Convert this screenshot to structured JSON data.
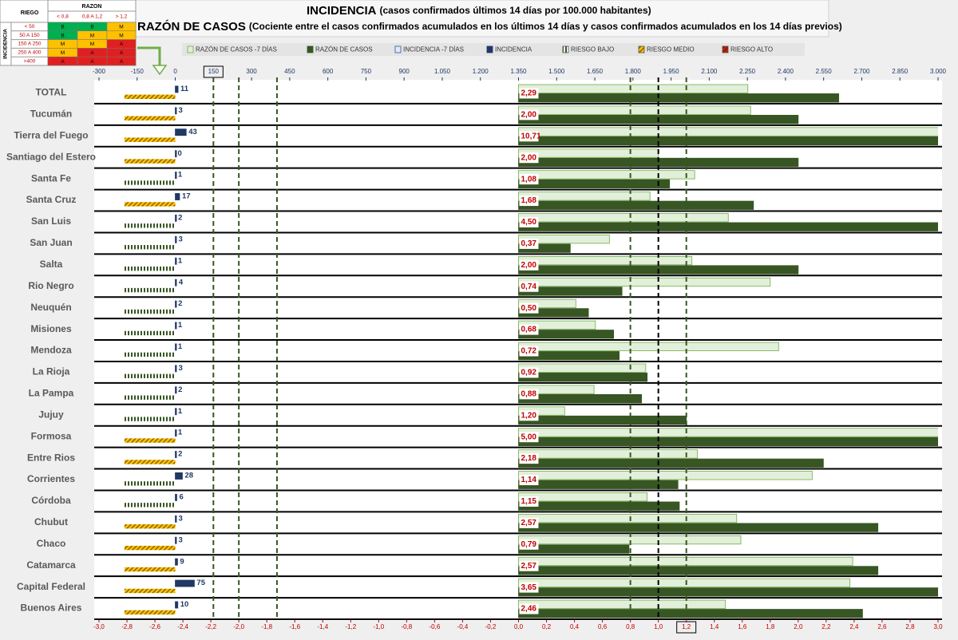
{
  "chart_data": {
    "type": "bar",
    "title": "INCIDENCIA",
    "title_note": "(casos confirmados últimos 14 días por 100.000 habitantes)",
    "subtitle": "RAZÓN DE CASOS",
    "subtitle_note": "(Cociente entre el casos confirmados acumulados en los últimos 14 días y casos confirmados acumulados en los 14 días previos)",
    "categories": [
      "TOTAL",
      "Tucumán",
      "Tierra del Fuego",
      "Santiago del Estero",
      "Santa Fe",
      "Santa Cruz",
      "San Luis",
      "San Juan",
      "Salta",
      "Rio Negro",
      "Neuquén",
      "Misiones",
      "Mendoza",
      "La Rioja",
      "La Pampa",
      "Jujuy",
      "Formosa",
      "Entre Rios",
      "Corrientes",
      "Córdoba",
      "Chubut",
      "Chaco",
      "Catamarca",
      "Capital Federal",
      "Buenos Aires"
    ],
    "series": [
      {
        "name": "RAZÓN DE CASOS -7 DÍAS",
        "axis": "x2",
        "color": "#e2efda",
        "edge_color": "#70ad47",
        "values": [
          1.64,
          1.66,
          3.1,
          1.0,
          1.26,
          0.94,
          1.5,
          0.65,
          1.24,
          1.8,
          0.41,
          0.55,
          1.86,
          0.91,
          0.54,
          0.33,
          3.1,
          1.28,
          2.1,
          0.92,
          1.56,
          1.59,
          2.39,
          2.37,
          1.48
        ]
      },
      {
        "name": "RAZÓN DE CASOS",
        "axis": "x2",
        "color": "#375623",
        "edge_color": "#375623",
        "values": [
          2.29,
          2,
          10.71,
          2,
          1.08,
          1.68,
          4.5,
          0.37,
          2,
          0.74,
          0.5,
          0.68,
          0.72,
          0.92,
          0.88,
          1.2,
          5,
          2.18,
          1.14,
          1.15,
          2.57,
          0.79,
          2.57,
          3.65,
          2.46
        ],
        "value_labels": [
          "2,29",
          "2,00",
          "10,71",
          "2,00",
          "1,08",
          "1,68",
          "4,50",
          "0,37",
          "2,00",
          "0,74",
          "0,50",
          "0,68",
          "0,72",
          "0,92",
          "0,88",
          "1,20",
          "5,00",
          "2,18",
          "1,14",
          "1,15",
          "2,57",
          "0,79",
          "2,57",
          "3,65",
          "2,46"
        ]
      },
      {
        "name": "INCIDENCIA -7 DÍAS",
        "axis": "x",
        "color": "#ddebf7",
        "edge_color": "#2f5597",
        "values": [
          null,
          null,
          null,
          null,
          null,
          null,
          null,
          null,
          null,
          null,
          null,
          null,
          null,
          null,
          null,
          null,
          null,
          null,
          null,
          null,
          null,
          null,
          null,
          null,
          null
        ]
      },
      {
        "name": "INCIDENCIA",
        "axis": "x",
        "color": "#1f3864",
        "edge_color": "#1f3864",
        "values": [
          11,
          3,
          43,
          0,
          1,
          17,
          2,
          3,
          1,
          4,
          2,
          1,
          1,
          3,
          2,
          1,
          1,
          2,
          28,
          6,
          3,
          3,
          9,
          75,
          10
        ]
      },
      {
        "name": "RIESGO BAJO",
        "axis": "x",
        "color": "#375623",
        "pattern": "stripes",
        "values": [
          null,
          null,
          null,
          null,
          -200,
          null,
          -200,
          -200,
          -200,
          -200,
          -200,
          -200,
          -200,
          -200,
          -200,
          -200,
          null,
          null,
          -200,
          -200,
          null,
          null,
          null,
          null,
          null
        ]
      },
      {
        "name": "RIESGO MEDIO",
        "axis": "x",
        "color": "#ffc000",
        "pattern": "hatch",
        "values": [
          -200,
          -200,
          -200,
          -200,
          null,
          -200,
          null,
          null,
          null,
          null,
          null,
          null,
          null,
          null,
          null,
          null,
          -200,
          -200,
          null,
          null,
          -200,
          -200,
          -200,
          -200,
          -200
        ]
      },
      {
        "name": "RIESGO ALTO",
        "axis": "x",
        "color": "#c00000",
        "pattern": "hatch",
        "values": [
          null,
          null,
          null,
          null,
          null,
          null,
          null,
          null,
          null,
          null,
          null,
          null,
          null,
          null,
          null,
          null,
          null,
          null,
          null,
          null,
          null,
          null,
          null,
          null,
          null
        ]
      }
    ],
    "xlim": [
      -300,
      3000
    ],
    "xticks": [
      -300,
      -150,
      0,
      150,
      300,
      450,
      600,
      750,
      900,
      {
        "value": 1050,
        "label": "1.050"
      },
      {
        "value": 1200,
        "label": "1.200"
      },
      {
        "value": 1350,
        "label": "1.350"
      },
      {
        "value": 1500,
        "label": "1.500"
      },
      {
        "value": 1650,
        "label": "1.650"
      },
      {
        "value": 1800,
        "label": "1.800"
      },
      {
        "value": 1950,
        "label": "1.950"
      },
      {
        "value": 2100,
        "label": "2.100"
      },
      {
        "value": 2250,
        "label": "2.250"
      },
      {
        "value": 2400,
        "label": "2.400"
      },
      {
        "value": 2550,
        "label": "2.550"
      },
      {
        "value": 2700,
        "label": "2.700"
      },
      {
        "value": 2850,
        "label": "2.850"
      },
      {
        "value": 3000,
        "label": "3.000"
      }
    ],
    "highlight_xtick_index": 3,
    "x2lim": [
      -3,
      3
    ],
    "x2ticks": [
      {
        "value": -3,
        "label": "-3,0"
      },
      {
        "value": -2.8,
        "label": "-2,8"
      },
      {
        "value": -2.6,
        "label": "-2,6"
      },
      {
        "value": -2.4,
        "label": "-2,4"
      },
      {
        "value": -2.2,
        "label": "-2,2"
      },
      {
        "value": -2,
        "label": "-2,0"
      },
      {
        "value": -1.8,
        "label": "-1,8"
      },
      {
        "value": -1.6,
        "label": "-1,6"
      },
      {
        "value": -1.4,
        "label": "-1,4"
      },
      {
        "value": -1.2,
        "label": "-1,2"
      },
      {
        "value": -1,
        "label": "-1,0"
      },
      {
        "value": -0.8,
        "label": "-0,8"
      },
      {
        "value": -0.6,
        "label": "-0,6"
      },
      {
        "value": -0.4,
        "label": "-0,4"
      },
      {
        "value": -0.2,
        "label": "-0,2"
      },
      {
        "value": 0,
        "label": "0,0"
      },
      {
        "value": 0.2,
        "label": "0,2"
      },
      {
        "value": 0.4,
        "label": "0,4"
      },
      {
        "value": 0.6,
        "label": "0,6"
      },
      {
        "value": 0.8,
        "label": "0,8"
      },
      {
        "value": 1,
        "label": "1,0"
      },
      {
        "value": 1.2,
        "label": "1,2"
      },
      {
        "value": 1.4,
        "label": "1,4"
      },
      {
        "value": 1.6,
        "label": "1,6"
      },
      {
        "value": 1.8,
        "label": "1,8"
      },
      {
        "value": 2,
        "label": "2,0"
      },
      {
        "value": 2.2,
        "label": "2,2"
      },
      {
        "value": 2.4,
        "label": "2,4"
      },
      {
        "value": 2.6,
        "label": "2,6"
      },
      {
        "value": 2.8,
        "label": "2,8"
      },
      {
        "value": 3,
        "label": "3,0"
      }
    ],
    "highlight_x2tick_index": 21,
    "reference_lines": [
      {
        "axis": "x",
        "value": 150,
        "color": "#375623"
      },
      {
        "axis": "x",
        "value": 250,
        "color": "#375623"
      },
      {
        "axis": "x",
        "value": 400,
        "color": "#375623"
      },
      {
        "axis": "x2",
        "value": 0.8,
        "color": "#375623"
      },
      {
        "axis": "x2",
        "value": 1,
        "color": "#000000"
      },
      {
        "axis": "x2",
        "value": 1.2,
        "color": "#375623"
      }
    ],
    "legend": "top"
  },
  "risk_table": {
    "corner": "RIEGO",
    "column_group": "RAZON",
    "row_group": "INCIDENCIA",
    "columns": [
      "< 0,8",
      "0,8 A 1,2",
      "> 1,2"
    ],
    "rows": [
      {
        "label": "< 50",
        "cells": [
          "B",
          "B",
          "M"
        ]
      },
      {
        "label": "50 A 150",
        "cells": [
          "B",
          "M",
          "M"
        ]
      },
      {
        "label": "150 A 250",
        "cells": [
          "M",
          "M",
          "A"
        ]
      },
      {
        "label": "250 A 400",
        "cells": [
          "M",
          "A",
          "A"
        ]
      },
      {
        "label": ">400",
        "cells": [
          "A",
          "A",
          "A"
        ]
      }
    ],
    "levels": [
      {
        "code": "B",
        "color": "#00b050"
      },
      {
        "code": "M",
        "color": "#ffc000"
      },
      {
        "code": "A",
        "color": "#e02020"
      }
    ]
  }
}
